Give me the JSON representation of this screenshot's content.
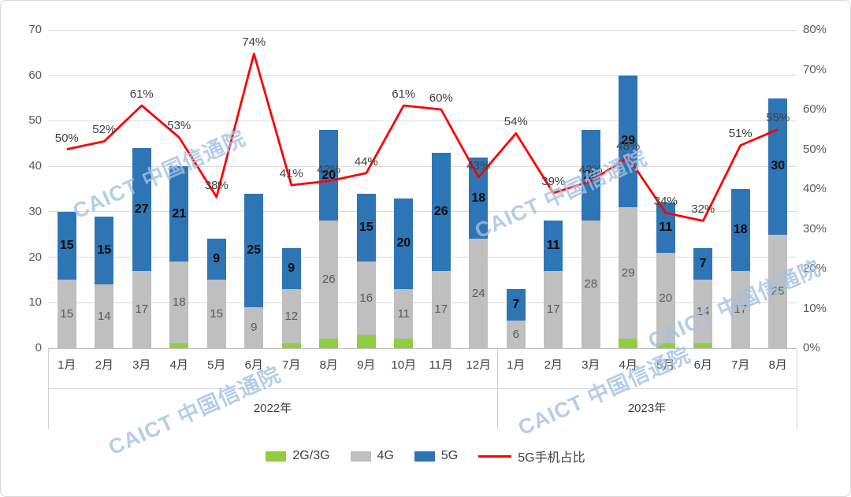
{
  "watermark": {
    "text": "CAICT 中国信通院"
  },
  "chart_data": {
    "type": "bar",
    "stacked": true,
    "title": "",
    "months": [
      "1月",
      "2月",
      "3月",
      "4月",
      "5月",
      "6月",
      "7月",
      "8月",
      "9月",
      "10月",
      "11月",
      "12月",
      "1月",
      "2月",
      "3月",
      "4月",
      "5月",
      "6月",
      "7月",
      "8月"
    ],
    "year_groups": [
      {
        "label": "2022年",
        "span": 12
      },
      {
        "label": "2023年",
        "span": 8
      }
    ],
    "series": [
      {
        "name": "2G/3G",
        "color": "#8fce3f",
        "show_labels": false,
        "bold": false,
        "label_color": "#595959",
        "values": [
          0,
          0,
          0,
          1,
          0,
          0,
          1,
          2,
          3,
          2,
          0,
          0,
          0,
          0,
          0,
          2,
          1,
          1,
          0,
          0
        ]
      },
      {
        "name": "4G",
        "color": "#bfbfbf",
        "show_labels": true,
        "bold": false,
        "label_color": "#595959",
        "values": [
          15,
          14,
          17,
          18,
          15,
          9,
          12,
          26,
          16,
          11,
          17,
          24,
          6,
          17,
          28,
          29,
          20,
          14,
          17,
          25
        ]
      },
      {
        "name": "5G",
        "color": "#2e75b6",
        "show_labels": true,
        "bold": true,
        "label_color": "#0d0d0d",
        "values": [
          15,
          15,
          27,
          21,
          9,
          25,
          9,
          20,
          15,
          20,
          26,
          18,
          7,
          11,
          20,
          29,
          11,
          7,
          18,
          30
        ]
      }
    ],
    "line": {
      "name": "5G手机占比",
      "color": "#ff0000",
      "values": [
        50,
        52,
        61,
        53,
        38,
        74,
        41,
        42,
        44,
        61,
        60,
        43,
        54,
        39,
        42,
        48,
        34,
        32,
        51,
        55
      ],
      "labels": [
        "50%",
        "52%",
        "61%",
        "53%",
        "38%",
        "74%",
        "41%",
        "42%",
        "44%",
        "61%",
        "60%",
        "43%",
        "54%",
        "39%",
        "42%",
        "48%",
        "34%",
        "32%",
        "51%",
        "55%"
      ]
    },
    "left_axis": {
      "min": 0,
      "max": 70,
      "step": 10,
      "ticks": [
        "0",
        "10",
        "20",
        "30",
        "40",
        "50",
        "60",
        "70"
      ]
    },
    "right_axis": {
      "min": 0,
      "max": 80,
      "step": 10,
      "ticks": [
        "0%",
        "10%",
        "20%",
        "30%",
        "40%",
        "50%",
        "60%",
        "70%",
        "80%"
      ]
    },
    "legend": [
      {
        "label": "2G/3G",
        "type": "rect",
        "color": "#8fce3f"
      },
      {
        "label": "4G",
        "type": "rect",
        "color": "#bfbfbf"
      },
      {
        "label": "5G",
        "type": "rect",
        "color": "#2e75b6"
      },
      {
        "label": "5G手机占比",
        "type": "line",
        "color": "#ff0000"
      }
    ]
  }
}
